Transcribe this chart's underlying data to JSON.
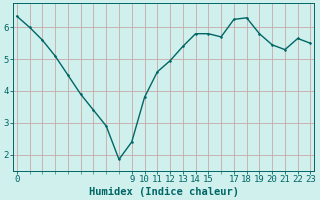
{
  "title": "",
  "xlabel": "Humidex (Indice chaleur)",
  "ylabel": "",
  "background_color": "#cff0ec",
  "grid_color": "#c8a8a8",
  "line_color": "#006666",
  "marker_color": "#006666",
  "x_values": [
    0,
    1,
    2,
    3,
    4,
    5,
    6,
    7,
    8,
    9,
    10,
    11,
    12,
    13,
    14,
    15,
    16,
    17,
    18,
    19,
    20,
    21,
    22,
    23
  ],
  "y_values": [
    6.35,
    6.0,
    5.6,
    5.1,
    4.5,
    3.9,
    3.4,
    2.9,
    1.85,
    2.4,
    3.8,
    4.6,
    4.95,
    5.4,
    5.8,
    5.8,
    5.7,
    6.25,
    6.3,
    5.8,
    5.45,
    5.3,
    5.65,
    5.5
  ],
  "xlim": [
    -0.3,
    23.3
  ],
  "ylim": [
    1.5,
    6.75
  ],
  "yticks": [
    2,
    3,
    4,
    5,
    6
  ],
  "xticks": [
    0,
    9,
    10,
    11,
    12,
    13,
    14,
    15,
    17,
    18,
    19,
    20,
    21,
    22,
    23
  ],
  "fontsize_label": 7.5,
  "fontsize_tick": 6.5,
  "line_width": 1.0,
  "marker_size": 2.5
}
